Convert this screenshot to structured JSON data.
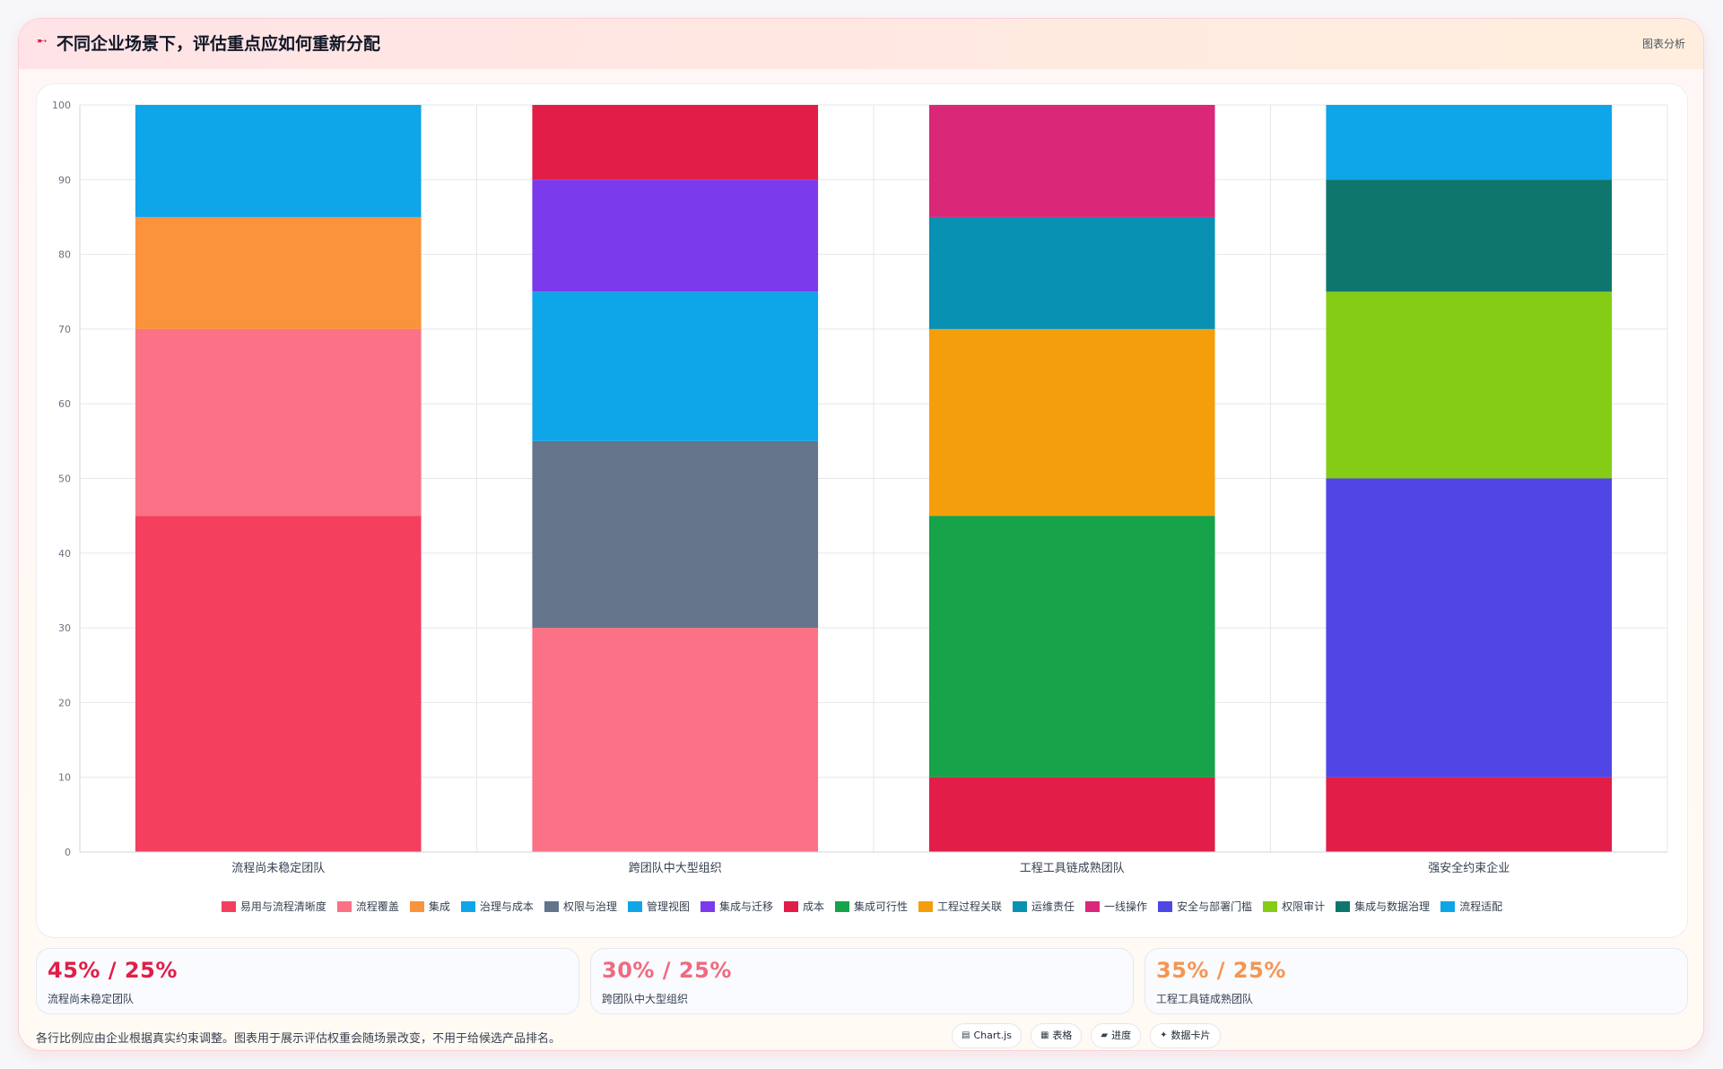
{
  "header": {
    "icon": "arrow-icon",
    "title": "不同企业场景下，评估重点应如何重新分配",
    "tag": "图表分析"
  },
  "chart_data": {
    "type": "bar",
    "stacked": true,
    "categories": [
      "流程尚未稳定团队",
      "跨团队中大型组织",
      "工程工具链成熟团队",
      "强安全约束企业"
    ],
    "ylim": [
      0,
      100
    ],
    "yticks": [
      0,
      10,
      20,
      30,
      40,
      50,
      60,
      70,
      80,
      90,
      100
    ],
    "grid": true,
    "legend_position": "bottom",
    "series": [
      {
        "name": "易用与流程清晰度",
        "color": "#f43f5e",
        "values": [
          45,
          null,
          null,
          null
        ]
      },
      {
        "name": "流程覆盖",
        "color": "#fb7185",
        "values": [
          25,
          30,
          null,
          null
        ]
      },
      {
        "name": "集成",
        "color": "#fb923c",
        "values": [
          15,
          null,
          null,
          null
        ]
      },
      {
        "name": "治理与成本",
        "color": "#0ea5e9",
        "values": [
          15,
          null,
          null,
          null
        ]
      },
      {
        "name": "权限与治理",
        "color": "#64748b",
        "values": [
          null,
          25,
          null,
          null
        ]
      },
      {
        "name": "管理视图",
        "color": "#0ea5e9",
        "values": [
          null,
          20,
          null,
          null
        ]
      },
      {
        "name": "集成与迁移",
        "color": "#7c3aed",
        "values": [
          null,
          15,
          null,
          null
        ]
      },
      {
        "name": "成本",
        "color": "#e11d48",
        "values": [
          null,
          10,
          10,
          10
        ]
      },
      {
        "name": "集成可行性",
        "color": "#16a34a",
        "values": [
          null,
          null,
          35,
          null
        ]
      },
      {
        "name": "工程过程关联",
        "color": "#f59e0b",
        "values": [
          null,
          null,
          25,
          null
        ]
      },
      {
        "name": "运维责任",
        "color": "#0891b2",
        "values": [
          null,
          null,
          15,
          null
        ]
      },
      {
        "name": "一线操作",
        "color": "#db2777",
        "values": [
          null,
          null,
          15,
          null
        ]
      },
      {
        "name": "安全与部署门槛",
        "color": "#4f46e5",
        "values": [
          null,
          null,
          null,
          40
        ]
      },
      {
        "name": "权限审计",
        "color": "#84cc16",
        "values": [
          null,
          null,
          null,
          25
        ]
      },
      {
        "name": "集成与数据治理",
        "color": "#0f766e",
        "values": [
          null,
          null,
          null,
          15
        ]
      },
      {
        "name": "流程适配",
        "color": "#0ea5e9",
        "values": [
          null,
          null,
          null,
          10
        ]
      }
    ]
  },
  "stats": [
    {
      "value": "45% / 25%",
      "label": "流程尚未稳定团队",
      "color": "#e11d48"
    },
    {
      "value": "30% / 25%",
      "label": "跨团队中大型组织",
      "color": "#f06a7f"
    },
    {
      "value": "35% / 25%",
      "label": "工程工具链成熟团队",
      "color": "#f59552"
    }
  ],
  "footnote": "各行比例应由企业根据真实约束调整。图表用于展示评估权重会随场景改变，不用于给候选产品排名。",
  "chips": [
    {
      "icon": "▤",
      "label": "Chart.js"
    },
    {
      "icon": "▦",
      "label": "表格"
    },
    {
      "icon": "▰",
      "label": "进度"
    },
    {
      "icon": "✦",
      "label": "数据卡片"
    }
  ]
}
